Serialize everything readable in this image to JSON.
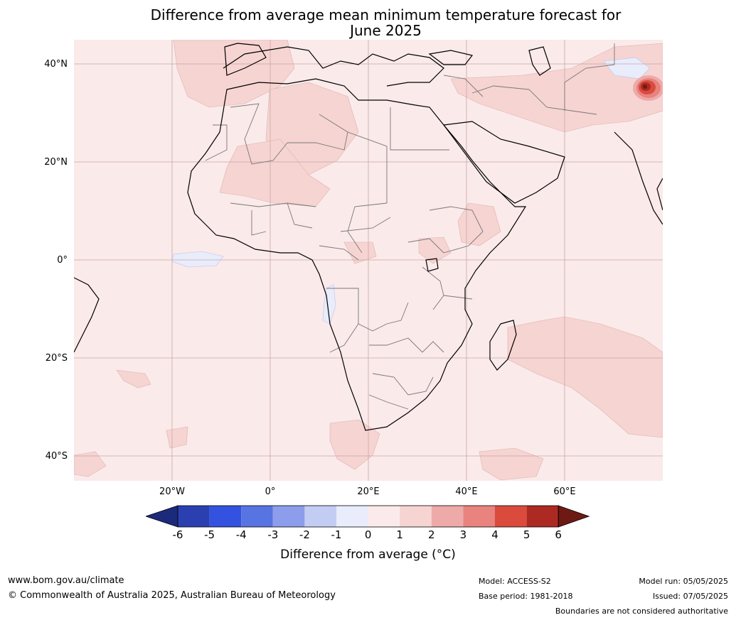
{
  "title_line1": "Difference from average mean minimum temperature forecast for",
  "title_line2": "June 2025",
  "axes": {
    "lat_labels": [
      "40°N",
      "20°N",
      "0°",
      "20°S",
      "40°S"
    ],
    "lon_labels": [
      "20°W",
      "0°",
      "20°E",
      "40°E",
      "60°E"
    ]
  },
  "colorbar": {
    "label": "Difference from average (°C)",
    "ticks": [
      "-6",
      "-5",
      "-4",
      "-3",
      "-2",
      "-1",
      "0",
      "1",
      "2",
      "3",
      "4",
      "5",
      "6"
    ],
    "colors": [
      "#1b2a7a",
      "#2b40b0",
      "#3452e0",
      "#5873e2",
      "#8b9deb",
      "#c3cdf4",
      "#e8ecfb",
      "#fbeaea",
      "#f6d4d2",
      "#eeaaa8",
      "#e8837e",
      "#da4b3e",
      "#ad2a22",
      "#6e1a14"
    ]
  },
  "footer": {
    "website": "www.bom.gov.au/climate",
    "copyright": "© Commonwealth of Australia 2025, Australian Bureau of Meteorology",
    "model": "Model: ACCESS-S2",
    "base_period": "Base period: 1981-2018",
    "model_run": "Model run: 05/05/2025",
    "issued": "Issued: 07/05/2025",
    "disclaimer": "Boundaries are not considered authoritative"
  }
}
